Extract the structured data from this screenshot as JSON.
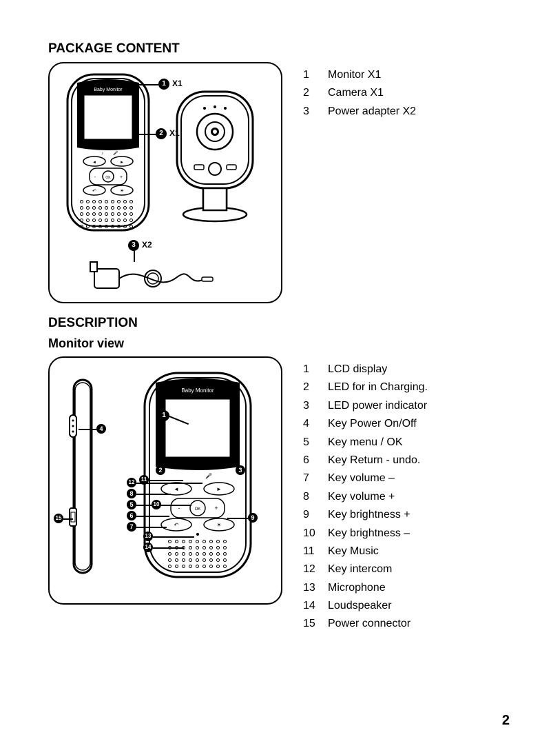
{
  "page_number": "2",
  "colors": {
    "text": "#000000",
    "bg": "#ffffff",
    "line": "#000000"
  },
  "package": {
    "heading": "PACKAGE CONTENT",
    "callouts": [
      {
        "num": "1",
        "qty": "X1"
      },
      {
        "num": "2",
        "qty": "X1"
      },
      {
        "num": "3",
        "qty": "X2"
      }
    ],
    "items": [
      {
        "num": "1",
        "label": "Monitor X1"
      },
      {
        "num": "2",
        "label": "Camera X1"
      },
      {
        "num": "3",
        "label": "Power adapter X2"
      }
    ],
    "monitor_label": "Baby Monitor"
  },
  "description": {
    "heading": "DESCRIPTION",
    "subheading": "Monitor view",
    "monitor_label": "Baby Monitor",
    "callouts": [
      "1",
      "2",
      "3",
      "4",
      "5",
      "6",
      "7",
      "8",
      "9",
      "10",
      "11",
      "12",
      "13",
      "14",
      "15"
    ],
    "items": [
      {
        "num": "1",
        "label": "LCD display"
      },
      {
        "num": "2",
        "label": "LED for in Charging."
      },
      {
        "num": "3",
        "label": "LED power indicator"
      },
      {
        "num": "4",
        "label": "Key Power On/Off"
      },
      {
        "num": "5",
        "label": "Key menu / OK"
      },
      {
        "num": "6",
        "label": "Key Return - undo."
      },
      {
        "num": "7",
        "label": "Key volume –"
      },
      {
        "num": "8",
        "label": "Key volume +"
      },
      {
        "num": "9",
        "label": "Key brightness +"
      },
      {
        "num": "10",
        "label": "Key brightness –"
      },
      {
        "num": "11",
        "label": "Key Music"
      },
      {
        "num": "12",
        "label": "Key intercom"
      },
      {
        "num": "13",
        "label": "Microphone"
      },
      {
        "num": "14",
        "label": "Loudspeaker"
      },
      {
        "num": "15",
        "label": "Power connector"
      }
    ]
  }
}
